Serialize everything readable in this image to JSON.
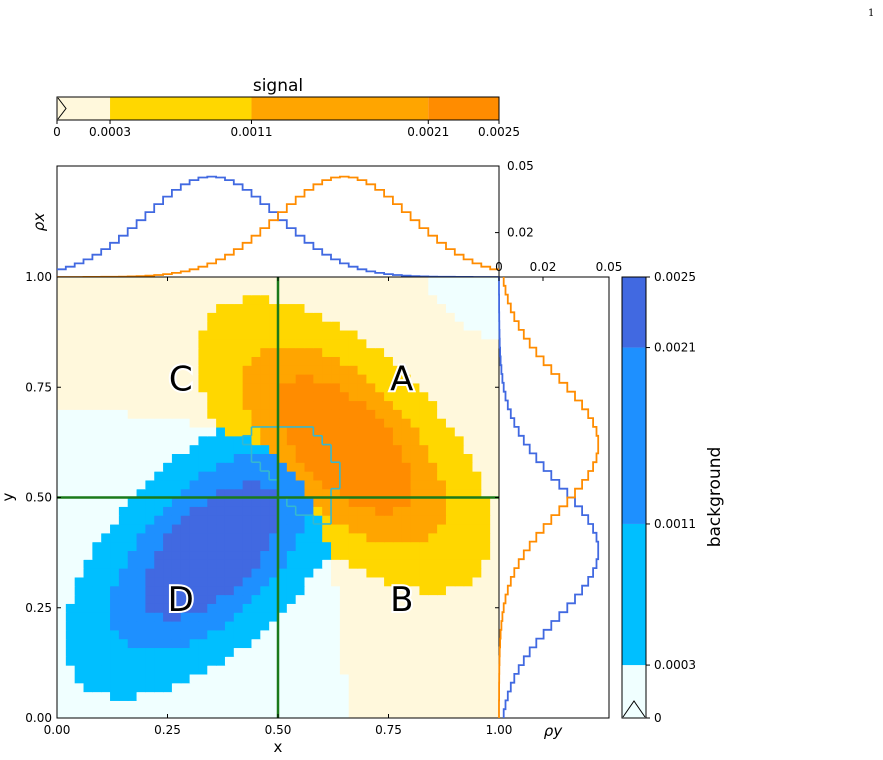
{
  "page_number": "1",
  "chart_data": [
    {
      "type": "heatmap",
      "xlabel": "x",
      "ylabel": "y",
      "xlim": [
        0,
        1
      ],
      "ylim": [
        0,
        1
      ],
      "xticks": [
        "0.00",
        "0.25",
        "0.50",
        "0.75",
        "1.00"
      ],
      "yticks": [
        "0.00",
        "0.25",
        "0.50",
        "0.75",
        "1.00"
      ],
      "cut_lines": {
        "x": 0.5,
        "y": 0.5,
        "color": "#1a7a1a"
      },
      "regions": [
        "A",
        "B",
        "C",
        "D"
      ],
      "signal": {
        "name": "signal",
        "center": [
          0.65,
          0.62
        ],
        "sigma": [
          0.15,
          0.15
        ],
        "rho": -0.6
      },
      "background": {
        "name": "background",
        "center": [
          0.35,
          0.38
        ],
        "sigma": [
          0.15,
          0.15
        ],
        "rho": 0.6
      },
      "overlap_contour_color": "#35b8cf"
    },
    {
      "type": "line",
      "title": "signal",
      "role": "colorbar",
      "boundaries": [
        0,
        0.0003,
        0.0011,
        0.0021,
        0.0025
      ],
      "tick_labels": [
        "0",
        "0.0003",
        "0.0011",
        "0.0021",
        "0.0025"
      ],
      "colors": [
        "#fff8dc",
        "#ffd700",
        "#ffa500",
        "#ff8c00"
      ]
    },
    {
      "type": "line",
      "ylabel": "background",
      "role": "colorbar",
      "boundaries": [
        0,
        0.0003,
        0.0011,
        0.0021,
        0.0025
      ],
      "tick_labels": [
        "0",
        "0.0003",
        "0.0011",
        "0.0021",
        "0.0025"
      ],
      "colors": [
        "#f0ffff",
        "#00bfff",
        "#1e90ff",
        "#4169e1"
      ]
    },
    {
      "type": "line",
      "ylabel": "ρx",
      "yticks": [
        "0.02",
        "0.05"
      ],
      "ylim": [
        0,
        0.05
      ],
      "series": [
        {
          "color": "#4169e1",
          "mean": 0.35,
          "sigma": 0.15
        },
        {
          "color": "#ff8c00",
          "mean": 0.65,
          "sigma": 0.15
        }
      ]
    },
    {
      "type": "line",
      "xlabel": "ρy",
      "xticks": [
        "0",
        "0.02",
        "0.05"
      ],
      "xlim": [
        0,
        0.05
      ],
      "series": [
        {
          "color": "#4169e1",
          "mean": 0.38,
          "sigma": 0.15
        },
        {
          "color": "#ff8c00",
          "mean": 0.62,
          "sigma": 0.15
        }
      ]
    }
  ]
}
